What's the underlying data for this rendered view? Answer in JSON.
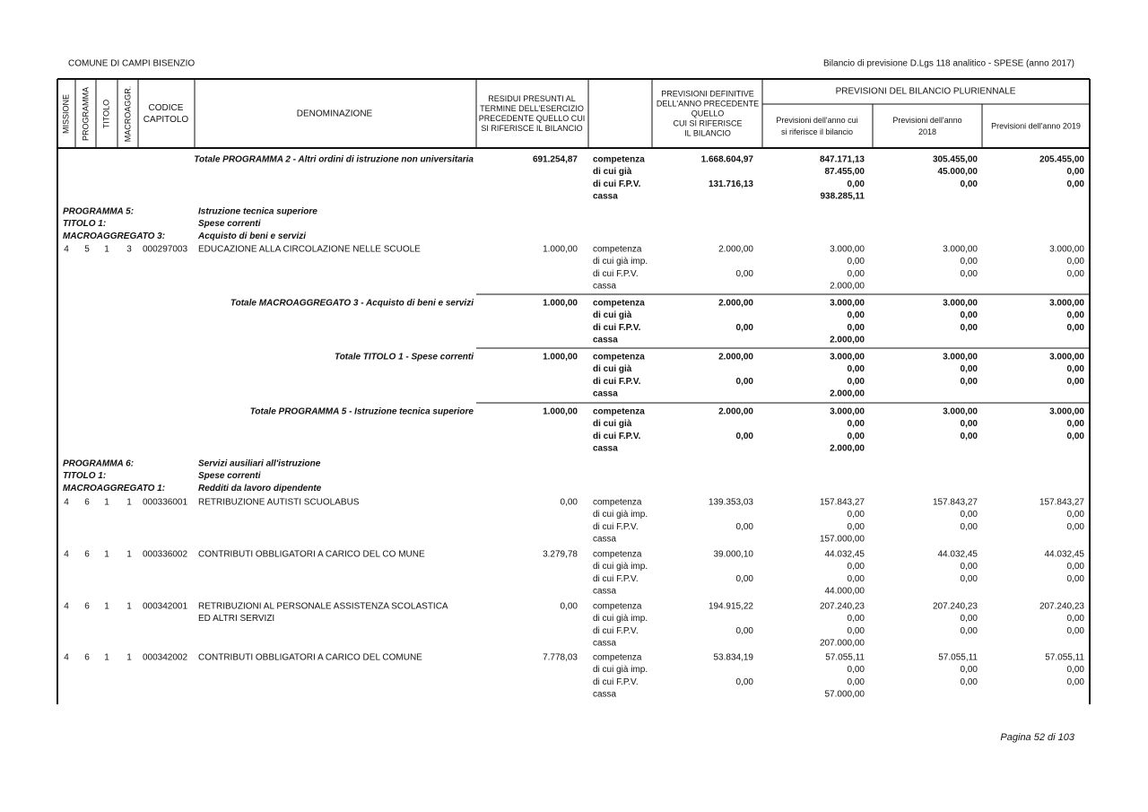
{
  "header": {
    "ente": "COMUNE DI CAMPI BISENZIO",
    "titolo": "Bilancio di previsione D.Lgs 118 analitico - SPESE (anno 2017)"
  },
  "columns": {
    "missione": "MISSIONE",
    "programma": "PROGRAMMA",
    "titolo": "TITOLO",
    "macroaggr": "MACROAGGR.",
    "codice": [
      "CODICE",
      "CAPITOLO"
    ],
    "denominazione": "DENOMINAZIONE",
    "residui": [
      "RESIDUI PRESUNTI AL",
      "TERMINE DELL'ESERCIZIO",
      "PRECEDENTE QUELLO CUI",
      "SI RIFERISCE IL BILANCIO"
    ],
    "previsioni_definitive": [
      "PREVISIONI DEFINITIVE",
      "DELL'ANNO PRECEDENTE",
      "QUELLO",
      "CUI SI RIFERISCE",
      "IL BILANCIO"
    ],
    "pluriennale": "PREVISIONI DEL BILANCIO PLURIENNALE",
    "anno_corrente": [
      "Previsioni dell'anno cui",
      "si riferisce il bilancio"
    ],
    "anno_2018": [
      "Previsioni dell'anno",
      "2018"
    ],
    "anno_2019": [
      "Previsioni dell'anno 2019"
    ]
  },
  "rows": [
    {
      "kind": "total",
      "label": "Totale PROGRAMMA 2 - Altri ordini di istruzione non universitaria",
      "residui": "691.254,87",
      "voci": [
        "competenza",
        "di cui già",
        "di cui F.P.V.",
        "cassa"
      ],
      "previsioni_definitive": [
        "1.668.604,97",
        "131.716,13"
      ],
      "anno_2017": [
        "847.171,13",
        "87.455,00",
        "0,00",
        "938.285,11"
      ],
      "anno_2018": [
        "305.455,00",
        "45.000,00",
        "0,00"
      ],
      "anno_2019": [
        "205.455,00",
        "0,00",
        "0,00"
      ]
    },
    {
      "kind": "section",
      "lines": [
        [
          "PROGRAMMA 5:",
          "Istruzione tecnica superiore"
        ],
        [
          "TITOLO 1:",
          "Spese correnti"
        ],
        [
          "MACROAGGREGATO 3:",
          "Acquisto di beni e servizi"
        ]
      ]
    },
    {
      "kind": "item",
      "missione": "4",
      "programma": "5",
      "titolo": "1",
      "macroaggr": "3",
      "codice": "000297003",
      "denominazione": [
        "EDUCAZIONE ALLA CIRCOLAZIONE NELLE SCUOLE"
      ],
      "residui": "1.000,00",
      "voci": [
        "competenza",
        "di cui già imp.",
        "di cui F.P.V.",
        "cassa"
      ],
      "previsioni_definitive": [
        "2.000,00",
        "0,00"
      ],
      "anno_2017": [
        "3.000,00",
        "0,00",
        "0,00",
        "2.000,00"
      ],
      "anno_2018": [
        "3.000,00",
        "0,00",
        "0,00"
      ],
      "anno_2019": [
        "3.000,00",
        "0,00",
        "0,00"
      ]
    },
    {
      "kind": "total",
      "label": "Totale MACROAGGREGATO 3 - Acquisto di beni e servizi",
      "residui": "1.000,00",
      "voci": [
        "competenza",
        "di cui già",
        "di cui F.P.V.",
        "cassa"
      ],
      "previsioni_definitive": [
        "2.000,00",
        "0,00"
      ],
      "anno_2017": [
        "3.000,00",
        "0,00",
        "0,00",
        "2.000,00"
      ],
      "anno_2018": [
        "3.000,00",
        "0,00",
        "0,00"
      ],
      "anno_2019": [
        "3.000,00",
        "0,00",
        "0,00"
      ]
    },
    {
      "kind": "total",
      "label": "Totale TITOLO 1 - Spese correnti",
      "residui": "1.000,00",
      "voci": [
        "competenza",
        "di cui già",
        "di cui F.P.V.",
        "cassa"
      ],
      "previsioni_definitive": [
        "2.000,00",
        "0,00"
      ],
      "anno_2017": [
        "3.000,00",
        "0,00",
        "0,00",
        "2.000,00"
      ],
      "anno_2018": [
        "3.000,00",
        "0,00",
        "0,00"
      ],
      "anno_2019": [
        "3.000,00",
        "0,00",
        "0,00"
      ]
    },
    {
      "kind": "total",
      "label": "Totale PROGRAMMA 5 - Istruzione tecnica superiore",
      "residui": "1.000,00",
      "voci": [
        "competenza",
        "di cui già",
        "di cui F.P.V.",
        "cassa"
      ],
      "previsioni_definitive": [
        "2.000,00",
        "0,00"
      ],
      "anno_2017": [
        "3.000,00",
        "0,00",
        "0,00",
        "2.000,00"
      ],
      "anno_2018": [
        "3.000,00",
        "0,00",
        "0,00"
      ],
      "anno_2019": [
        "3.000,00",
        "0,00",
        "0,00"
      ]
    },
    {
      "kind": "section",
      "lines": [
        [
          "PROGRAMMA 6:",
          "Servizi ausiliari all'istruzione"
        ],
        [
          "TITOLO 1:",
          "Spese correnti"
        ],
        [
          "MACROAGGREGATO 1:",
          "Redditi da lavoro dipendente"
        ]
      ]
    },
    {
      "kind": "item",
      "missione": "4",
      "programma": "6",
      "titolo": "1",
      "macroaggr": "1",
      "codice": "000336001",
      "denominazione": [
        "RETRIBUZIONE AUTISTI SCUOLABUS"
      ],
      "residui": "0,00",
      "voci": [
        "competenza",
        "di cui già imp.",
        "di cui F.P.V.",
        "cassa"
      ],
      "previsioni_definitive": [
        "139.353,03",
        "0,00"
      ],
      "anno_2017": [
        "157.843,27",
        "0,00",
        "0,00",
        "157.000,00"
      ],
      "anno_2018": [
        "157.843,27",
        "0,00",
        "0,00"
      ],
      "anno_2019": [
        "157.843,27",
        "0,00",
        "0,00"
      ]
    },
    {
      "kind": "item",
      "missione": "4",
      "programma": "6",
      "titolo": "1",
      "macroaggr": "1",
      "codice": "000336002",
      "denominazione": [
        "CONTRIBUTI OBBLIGATORI A CARICO DEL CO MUNE"
      ],
      "residui": "3.279,78",
      "voci": [
        "competenza",
        "di cui già imp.",
        "di cui F.P.V.",
        "cassa"
      ],
      "previsioni_definitive": [
        "39.000,10",
        "0,00"
      ],
      "anno_2017": [
        "44.032,45",
        "0,00",
        "0,00",
        "44.000,00"
      ],
      "anno_2018": [
        "44.032,45",
        "0,00",
        "0,00"
      ],
      "anno_2019": [
        "44.032,45",
        "0,00",
        "0,00"
      ]
    },
    {
      "kind": "item",
      "missione": "4",
      "programma": "6",
      "titolo": "1",
      "macroaggr": "1",
      "codice": "000342001",
      "denominazione": [
        "RETRIBUZIONI AL PERSONALE ASSISTENZA SCOLASTICA",
        "ED ALTRI SERVIZI"
      ],
      "residui": "0,00",
      "voci": [
        "competenza",
        "di cui già imp.",
        "di cui F.P.V.",
        "cassa"
      ],
      "previsioni_definitive": [
        "194.915,22",
        "0,00"
      ],
      "anno_2017": [
        "207.240,23",
        "0,00",
        "0,00",
        "207.000,00"
      ],
      "anno_2018": [
        "207.240,23",
        "0,00",
        "0,00"
      ],
      "anno_2019": [
        "207.240,23",
        "0,00",
        "0,00"
      ]
    },
    {
      "kind": "item",
      "missione": "4",
      "programma": "6",
      "titolo": "1",
      "macroaggr": "1",
      "codice": "000342002",
      "denominazione": [
        "CONTRIBUTI OBBLIGATORI A CARICO DEL COMUNE"
      ],
      "residui": "7.778,03",
      "voci": [
        "competenza",
        "di cui già imp.",
        "di cui F.P.V.",
        "cassa"
      ],
      "previsioni_definitive": [
        "53.834,19",
        "0,00"
      ],
      "anno_2017": [
        "57.055,11",
        "0,00",
        "0,00",
        "57.000,00"
      ],
      "anno_2018": [
        "57.055,11",
        "0,00",
        "0,00"
      ],
      "anno_2019": [
        "57.055,11",
        "0,00",
        "0,00"
      ]
    }
  ],
  "footer": "Pagina 52 di 103"
}
